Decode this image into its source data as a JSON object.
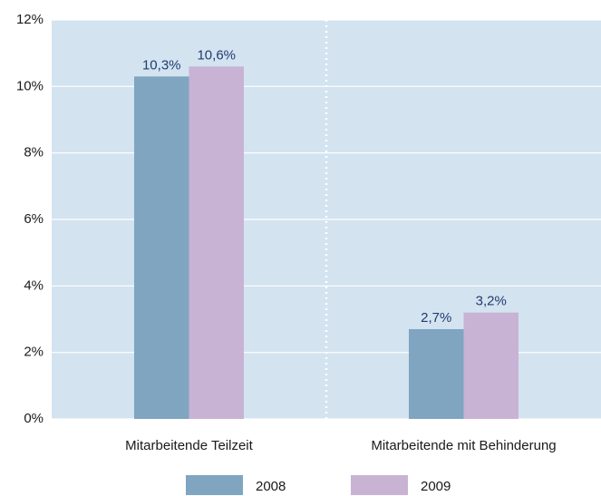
{
  "chart_data": {
    "type": "bar",
    "categories": [
      "Mitarbeitende Teilzeit",
      "Mitarbeitende mit Behinderung"
    ],
    "series": [
      {
        "name": "2008",
        "color": "#7fa5c1",
        "values": [
          10.3,
          2.7
        ],
        "value_labels": [
          "10,3%",
          "2,7%"
        ]
      },
      {
        "name": "2009",
        "color": "#c8b3d4",
        "values": [
          10.6,
          3.2
        ],
        "value_labels": [
          "10,6%",
          "3,2%"
        ]
      }
    ],
    "ylim": [
      0,
      12
    ],
    "yticks": [
      {
        "value": 0,
        "label": "0%"
      },
      {
        "value": 2,
        "label": "2%"
      },
      {
        "value": 4,
        "label": "4%"
      },
      {
        "value": 6,
        "label": "6%"
      },
      {
        "value": 8,
        "label": "8%"
      },
      {
        "value": 10,
        "label": "10%"
      },
      {
        "value": 12,
        "label": "12%"
      }
    ],
    "grid": true
  }
}
